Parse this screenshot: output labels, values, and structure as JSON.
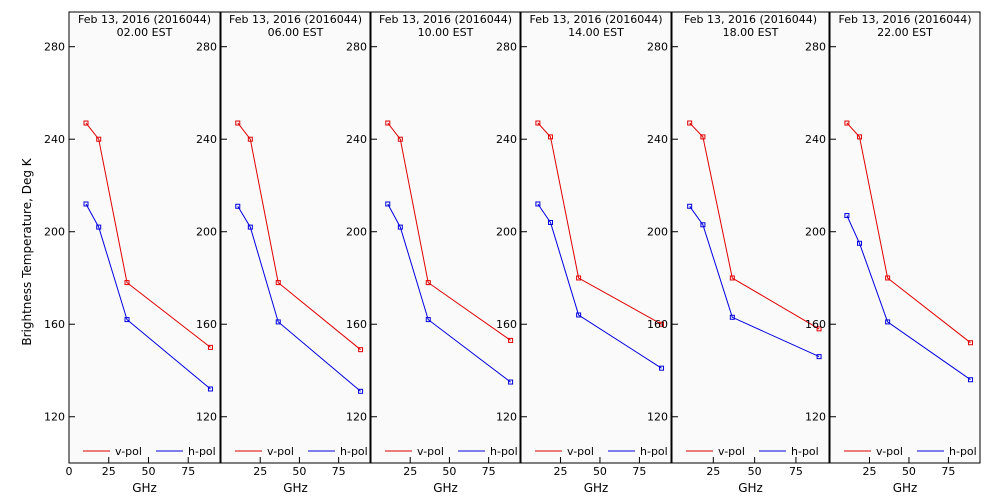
{
  "chart_data": {
    "type": "line",
    "ylabel": "Brightness Temperature, Deg K",
    "xlabel": "GHz",
    "xlim": [
      0,
      95
    ],
    "ylim": [
      100,
      295
    ],
    "x_first_ticks": [
      0,
      25,
      50,
      75
    ],
    "x_ticks": [
      25,
      50,
      75
    ],
    "y_ticks": [
      120,
      160,
      200,
      240,
      280
    ],
    "legend_placement": "bottom",
    "legend": [
      "v-pol",
      "h-pol"
    ],
    "colors": {
      "v-pol": "#e00000",
      "h-pol": "#0000e0",
      "frame": "#000000",
      "background": "#fafafa"
    },
    "panels": [
      {
        "title": "Feb 13, 2016 (2016044)",
        "time": "02.00 EST",
        "series": [
          {
            "name": "v-pol",
            "x": [
              10.7,
              18.7,
              36.5,
              89.0
            ],
            "y": [
              247,
              240,
              178,
              150
            ]
          },
          {
            "name": "h-pol",
            "x": [
              10.7,
              18.7,
              36.5,
              89.0
            ],
            "y": [
              212,
              202,
              162,
              132
            ]
          }
        ]
      },
      {
        "title": "Feb 13, 2016 (2016044)",
        "time": "06.00 EST",
        "series": [
          {
            "name": "v-pol",
            "x": [
              10.7,
              18.7,
              36.5,
              89.0
            ],
            "y": [
              247,
              240,
              178,
              149
            ]
          },
          {
            "name": "h-pol",
            "x": [
              10.7,
              18.7,
              36.5,
              89.0
            ],
            "y": [
              211,
              202,
              161,
              131
            ]
          }
        ]
      },
      {
        "title": "Feb 13, 2016 (2016044)",
        "time": "10.00 EST",
        "series": [
          {
            "name": "v-pol",
            "x": [
              10.7,
              18.7,
              36.5,
              89.0
            ],
            "y": [
              247,
              240,
              178,
              153
            ]
          },
          {
            "name": "h-pol",
            "x": [
              10.7,
              18.7,
              36.5,
              89.0
            ],
            "y": [
              212,
              202,
              162,
              135
            ]
          }
        ]
      },
      {
        "title": "Feb 13, 2016 (2016044)",
        "time": "14.00 EST",
        "series": [
          {
            "name": "v-pol",
            "x": [
              10.7,
              18.7,
              36.5,
              89.0
            ],
            "y": [
              247,
              241,
              180,
              160
            ]
          },
          {
            "name": "h-pol",
            "x": [
              10.7,
              18.7,
              36.5,
              89.0
            ],
            "y": [
              212,
              204,
              164,
              141
            ]
          }
        ]
      },
      {
        "title": "Feb 13, 2016 (2016044)",
        "time": "18.00 EST",
        "series": [
          {
            "name": "v-pol",
            "x": [
              10.7,
              18.7,
              36.5,
              89.0
            ],
            "y": [
              247,
              241,
              180,
              158
            ]
          },
          {
            "name": "h-pol",
            "x": [
              10.7,
              18.7,
              36.5,
              89.0
            ],
            "y": [
              211,
              203,
              163,
              146
            ]
          }
        ]
      },
      {
        "title": "Feb 13, 2016 (2016044)",
        "time": "22.00 EST",
        "series": [
          {
            "name": "v-pol",
            "x": [
              10.7,
              18.7,
              36.5,
              89.0
            ],
            "y": [
              247,
              241,
              180,
              152
            ]
          },
          {
            "name": "h-pol",
            "x": [
              10.7,
              18.7,
              36.5,
              89.0
            ],
            "y": [
              207,
              195,
              161,
              136
            ]
          }
        ]
      }
    ]
  }
}
